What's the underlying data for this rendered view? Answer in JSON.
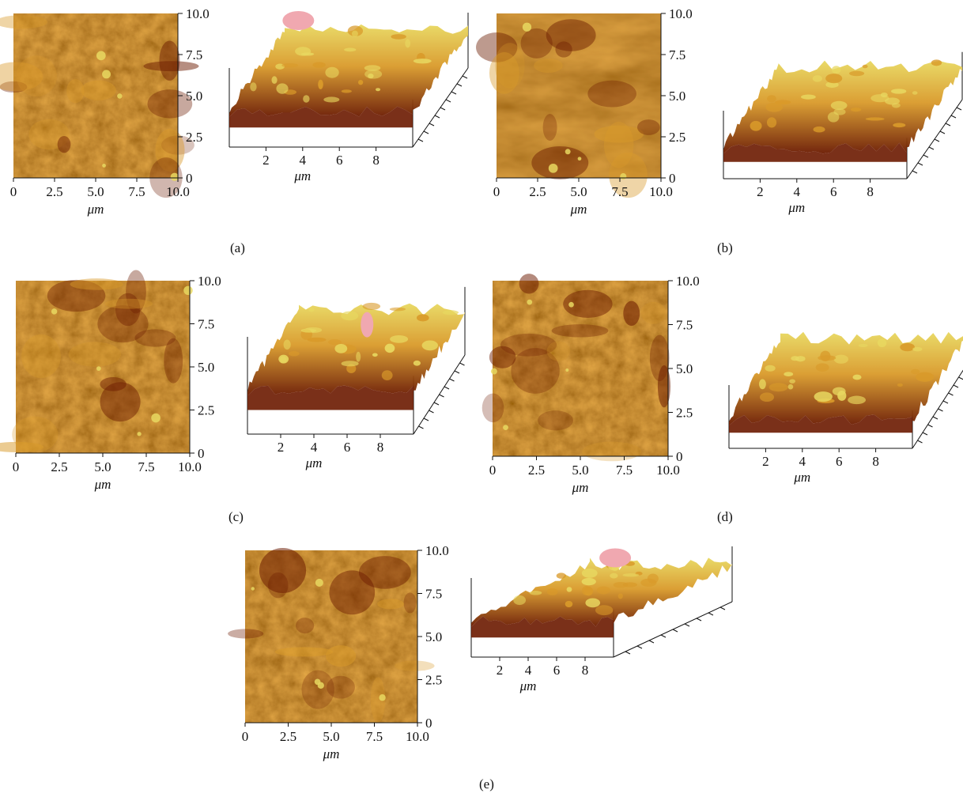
{
  "panels": [
    {
      "id": "a",
      "label": "(a)",
      "map_axis_label": "μm",
      "surface_axis_label": "μm",
      "map_x_ticks": [
        "0",
        "2.5",
        "5.0",
        "7.5",
        "10.0"
      ],
      "map_y_ticks": [
        "0",
        "2.5",
        "5.0",
        "7.5",
        "10.0"
      ],
      "surface_x_ticks": [
        "2",
        "4",
        "6",
        "8"
      ]
    },
    {
      "id": "b",
      "label": "(b)",
      "map_axis_label": "μm",
      "surface_axis_label": "μm",
      "map_x_ticks": [
        "0",
        "2.5",
        "5.0",
        "7.5",
        "10.0"
      ],
      "map_y_ticks": [
        "0",
        "2.5",
        "5.0",
        "7.5",
        "10.0"
      ],
      "surface_x_ticks": [
        "2",
        "4",
        "6",
        "8"
      ]
    },
    {
      "id": "c",
      "label": "(c)",
      "map_axis_label": "μm",
      "surface_axis_label": "μm",
      "map_x_ticks": [
        "0",
        "2.5",
        "5.0",
        "7.5",
        "10.0"
      ],
      "map_y_ticks": [
        "0",
        "2.5",
        "5.0",
        "7.5",
        "10.0"
      ],
      "surface_x_ticks": [
        "2",
        "4",
        "6",
        "8"
      ]
    },
    {
      "id": "d",
      "label": "(d)",
      "map_axis_label": "μm",
      "surface_axis_label": "μm",
      "map_x_ticks": [
        "0",
        "2.5",
        "5.0",
        "7.5",
        "10.0"
      ],
      "map_y_ticks": [
        "0",
        "2.5",
        "5.0",
        "7.5",
        "10.0"
      ],
      "surface_x_ticks": [
        "2",
        "4",
        "6",
        "8"
      ]
    },
    {
      "id": "e",
      "label": "(e)",
      "map_axis_label": "μm",
      "surface_axis_label": "μm",
      "map_x_ticks": [
        "0",
        "2.5",
        "5.0",
        "7.5",
        "10.0"
      ],
      "map_y_ticks": [
        "0",
        "2.5",
        "5.0",
        "7.5",
        "10.0"
      ],
      "surface_x_ticks": [
        "2",
        "4",
        "6",
        "8"
      ]
    }
  ],
  "colors": {
    "dark": "#6b1a00",
    "mid": "#b0560f",
    "light": "#d99a2a",
    "highlight": "#e8d860",
    "peak": "#f0a8b0"
  }
}
